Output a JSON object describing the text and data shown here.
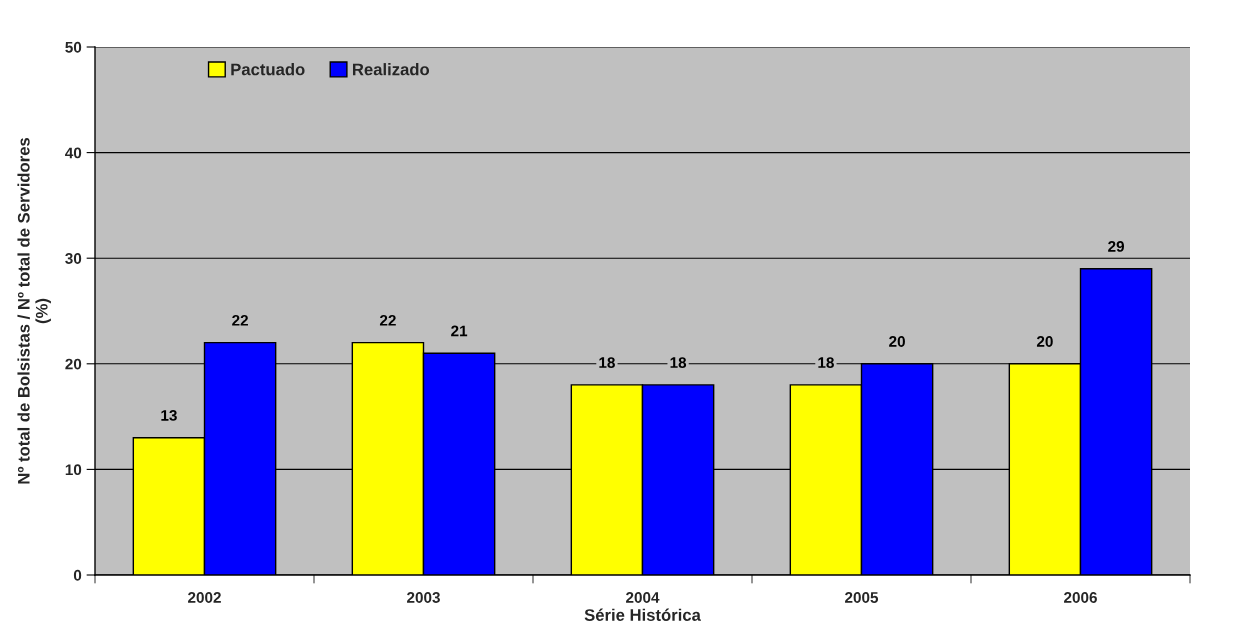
{
  "chart_data": {
    "type": "bar",
    "xlabel": "Série Histórica",
    "ylabel": "Nº total de Bolsistas / Nº total de Servidores\n(%)",
    "categories": [
      "2002",
      "2003",
      "2004",
      "2005",
      "2006"
    ],
    "series": [
      {
        "name": "Pactuado",
        "color": "#ffff00",
        "values": [
          13,
          22,
          18,
          18,
          20
        ]
      },
      {
        "name": "Realizado",
        "color": "#0000ff",
        "values": [
          22,
          21,
          18,
          20,
          29
        ]
      }
    ],
    "ylim": [
      0,
      50
    ],
    "yticks": [
      0,
      10,
      20,
      30,
      40,
      50
    ],
    "grid": "y",
    "legend": "top left",
    "data_labels": true
  }
}
